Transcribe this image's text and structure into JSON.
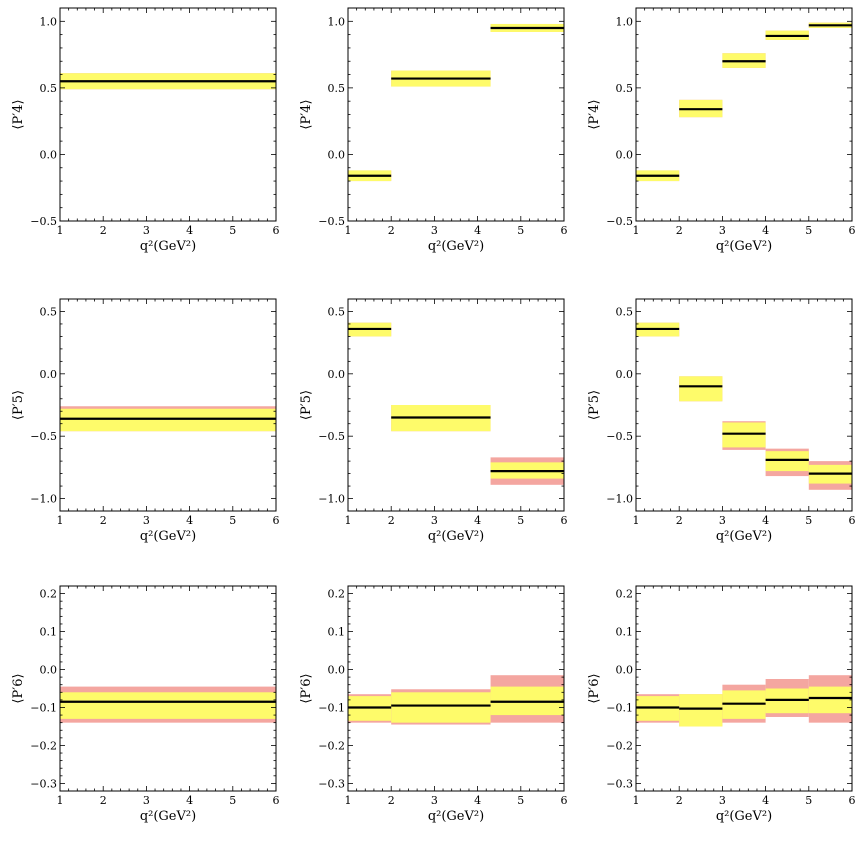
{
  "colors": {
    "outer_band": "#f4a6a0",
    "inner_band": "#fefb6a",
    "central_line": "#000000",
    "frame": "#000000"
  },
  "chart_data": [
    {
      "type": "bar",
      "panel": "P4-one-bin",
      "ylabel": "⟨P′4⟩",
      "xlabel": "q²(GeV²)",
      "xlim": [
        1,
        6
      ],
      "ylim": [
        -0.5,
        1.1
      ],
      "xticks": [
        1,
        2,
        3,
        4,
        5,
        6
      ],
      "yticks": [
        -0.5,
        0.0,
        0.5,
        1.0
      ],
      "ytick_labels": [
        "−0.5",
        "0.0",
        "0.5",
        "1.0"
      ],
      "bins": [
        {
          "x0": 1,
          "x1": 6,
          "value": 0.55,
          "inner": [
            0.49,
            0.61
          ],
          "outer": [
            0.49,
            0.61
          ]
        }
      ]
    },
    {
      "type": "bar",
      "panel": "P4-three-bins",
      "ylabel": "⟨P′4⟩",
      "xlabel": "q²(GeV²)",
      "xlim": [
        1,
        6
      ],
      "ylim": [
        -0.5,
        1.1
      ],
      "xticks": [
        1,
        2,
        3,
        4,
        5,
        6
      ],
      "yticks": [
        -0.5,
        0.0,
        0.5,
        1.0
      ],
      "ytick_labels": [
        "−0.5",
        "0.0",
        "0.5",
        "1.0"
      ],
      "bins": [
        {
          "x0": 1,
          "x1": 2,
          "value": -0.16,
          "inner": [
            -0.2,
            -0.12
          ],
          "outer": [
            -0.2,
            -0.12
          ]
        },
        {
          "x0": 2,
          "x1": 4.3,
          "value": 0.57,
          "inner": [
            0.51,
            0.63
          ],
          "outer": [
            0.51,
            0.63
          ]
        },
        {
          "x0": 4.3,
          "x1": 6,
          "value": 0.95,
          "inner": [
            0.92,
            0.98
          ],
          "outer": [
            0.92,
            0.98
          ]
        }
      ]
    },
    {
      "type": "bar",
      "panel": "P4-five-bins",
      "ylabel": "⟨P′4⟩",
      "xlabel": "q²(GeV²)",
      "xlim": [
        1,
        6
      ],
      "ylim": [
        -0.5,
        1.1
      ],
      "xticks": [
        1,
        2,
        3,
        4,
        5,
        6
      ],
      "yticks": [
        -0.5,
        0.0,
        0.5,
        1.0
      ],
      "ytick_labels": [
        "−0.5",
        "0.0",
        "0.5",
        "1.0"
      ],
      "bins": [
        {
          "x0": 1,
          "x1": 2,
          "value": -0.16,
          "inner": [
            -0.2,
            -0.12
          ],
          "outer": [
            -0.2,
            -0.12
          ]
        },
        {
          "x0": 2,
          "x1": 3,
          "value": 0.34,
          "inner": [
            0.28,
            0.41
          ],
          "outer": [
            0.28,
            0.41
          ]
        },
        {
          "x0": 3,
          "x1": 4,
          "value": 0.7,
          "inner": [
            0.65,
            0.76
          ],
          "outer": [
            0.65,
            0.76
          ]
        },
        {
          "x0": 4,
          "x1": 5,
          "value": 0.89,
          "inner": [
            0.86,
            0.93
          ],
          "outer": [
            0.86,
            0.93
          ]
        },
        {
          "x0": 5,
          "x1": 6,
          "value": 0.97,
          "inner": [
            0.95,
            0.99
          ],
          "outer": [
            0.95,
            0.99
          ]
        }
      ]
    },
    {
      "type": "bar",
      "panel": "P5-one-bin",
      "ylabel": "⟨P′5⟩",
      "xlabel": "q²(GeV²)",
      "xlim": [
        1,
        6
      ],
      "ylim": [
        -1.1,
        0.6
      ],
      "xticks": [
        1,
        2,
        3,
        4,
        5,
        6
      ],
      "yticks": [
        -1.0,
        -0.5,
        0.0,
        0.5
      ],
      "ytick_labels": [
        "−1.0",
        "−0.5",
        "0.0",
        "0.5"
      ],
      "bins": [
        {
          "x0": 1,
          "x1": 6,
          "value": -0.36,
          "inner": [
            -0.46,
            -0.28
          ],
          "outer": [
            -0.46,
            -0.26
          ]
        }
      ]
    },
    {
      "type": "bar",
      "panel": "P5-three-bins",
      "ylabel": "⟨P′5⟩",
      "xlabel": "q²(GeV²)",
      "xlim": [
        1,
        6
      ],
      "ylim": [
        -1.1,
        0.6
      ],
      "xticks": [
        1,
        2,
        3,
        4,
        5,
        6
      ],
      "yticks": [
        -1.0,
        -0.5,
        0.0,
        0.5
      ],
      "ytick_labels": [
        "−1.0",
        "−0.5",
        "0.0",
        "0.5"
      ],
      "bins": [
        {
          "x0": 1,
          "x1": 2,
          "value": 0.36,
          "inner": [
            0.3,
            0.41
          ],
          "outer": [
            0.3,
            0.41
          ]
        },
        {
          "x0": 2,
          "x1": 4.3,
          "value": -0.35,
          "inner": [
            -0.46,
            -0.25
          ],
          "outer": [
            -0.46,
            -0.25
          ]
        },
        {
          "x0": 4.3,
          "x1": 6,
          "value": -0.78,
          "inner": [
            -0.84,
            -0.71
          ],
          "outer": [
            -0.89,
            -0.67
          ]
        }
      ]
    },
    {
      "type": "bar",
      "panel": "P5-five-bins",
      "ylabel": "⟨P′5⟩",
      "xlabel": "q²(GeV²)",
      "xlim": [
        1,
        6
      ],
      "ylim": [
        -1.1,
        0.6
      ],
      "xticks": [
        1,
        2,
        3,
        4,
        5,
        6
      ],
      "yticks": [
        -1.0,
        -0.5,
        0.0,
        0.5
      ],
      "ytick_labels": [
        "−1.0",
        "−0.5",
        "0.0",
        "0.5"
      ],
      "bins": [
        {
          "x0": 1,
          "x1": 2,
          "value": 0.36,
          "inner": [
            0.3,
            0.41
          ],
          "outer": [
            0.3,
            0.41
          ]
        },
        {
          "x0": 2,
          "x1": 3,
          "value": -0.1,
          "inner": [
            -0.22,
            -0.02
          ],
          "outer": [
            -0.22,
            -0.02
          ]
        },
        {
          "x0": 3,
          "x1": 4,
          "value": -0.48,
          "inner": [
            -0.59,
            -0.39
          ],
          "outer": [
            -0.61,
            -0.38
          ]
        },
        {
          "x0": 4,
          "x1": 5,
          "value": -0.69,
          "inner": [
            -0.78,
            -0.62
          ],
          "outer": [
            -0.82,
            -0.6
          ]
        },
        {
          "x0": 5,
          "x1": 6,
          "value": -0.8,
          "inner": [
            -0.88,
            -0.73
          ],
          "outer": [
            -0.93,
            -0.7
          ]
        }
      ]
    },
    {
      "type": "bar",
      "panel": "P6-one-bin",
      "ylabel": "⟨P′6⟩",
      "xlabel": "q²(GeV²)",
      "xlim": [
        1,
        6
      ],
      "ylim": [
        -0.32,
        0.22
      ],
      "xticks": [
        1,
        2,
        3,
        4,
        5,
        6
      ],
      "yticks": [
        -0.3,
        -0.2,
        -0.1,
        0.0,
        0.1,
        0.2
      ],
      "ytick_labels": [
        "−0.3",
        "−0.2",
        "−0.1",
        "0.0",
        "0.1",
        "0.2"
      ],
      "bins": [
        {
          "x0": 1,
          "x1": 6,
          "value": -0.085,
          "inner": [
            -0.13,
            -0.06
          ],
          "outer": [
            -0.14,
            -0.045
          ]
        }
      ]
    },
    {
      "type": "bar",
      "panel": "P6-three-bins",
      "ylabel": "⟨P′6⟩",
      "xlabel": "q²(GeV²)",
      "xlim": [
        1,
        6
      ],
      "ylim": [
        -0.32,
        0.22
      ],
      "xticks": [
        1,
        2,
        3,
        4,
        5,
        6
      ],
      "yticks": [
        -0.3,
        -0.2,
        -0.1,
        0.0,
        0.1,
        0.2
      ],
      "ytick_labels": [
        "−0.3",
        "−0.2",
        "−0.1",
        "0.0",
        "0.1",
        "0.2"
      ],
      "bins": [
        {
          "x0": 1,
          "x1": 2,
          "value": -0.1,
          "inner": [
            -0.135,
            -0.07
          ],
          "outer": [
            -0.14,
            -0.065
          ]
        },
        {
          "x0": 2,
          "x1": 4.3,
          "value": -0.095,
          "inner": [
            -0.14,
            -0.06
          ],
          "outer": [
            -0.145,
            -0.052
          ]
        },
        {
          "x0": 4.3,
          "x1": 6,
          "value": -0.085,
          "inner": [
            -0.12,
            -0.045
          ],
          "outer": [
            -0.14,
            -0.015
          ]
        }
      ]
    },
    {
      "type": "bar",
      "panel": "P6-five-bins",
      "ylabel": "⟨P′6⟩",
      "xlabel": "q²(GeV²)",
      "xlim": [
        1,
        6
      ],
      "ylim": [
        -0.32,
        0.22
      ],
      "xticks": [
        1,
        2,
        3,
        4,
        5,
        6
      ],
      "yticks": [
        -0.3,
        -0.2,
        -0.1,
        0.0,
        0.1,
        0.2
      ],
      "ytick_labels": [
        "−0.3",
        "−0.2",
        "−0.1",
        "0.0",
        "0.1",
        "0.2"
      ],
      "bins": [
        {
          "x0": 1,
          "x1": 2,
          "value": -0.1,
          "inner": [
            -0.135,
            -0.07
          ],
          "outer": [
            -0.14,
            -0.065
          ]
        },
        {
          "x0": 2,
          "x1": 3,
          "value": -0.103,
          "inner": [
            -0.15,
            -0.065
          ],
          "outer": [
            -0.15,
            -0.065
          ]
        },
        {
          "x0": 3,
          "x1": 4,
          "value": -0.09,
          "inner": [
            -0.13,
            -0.055
          ],
          "outer": [
            -0.14,
            -0.04
          ]
        },
        {
          "x0": 4,
          "x1": 5,
          "value": -0.08,
          "inner": [
            -0.115,
            -0.05
          ],
          "outer": [
            -0.125,
            -0.025
          ]
        },
        {
          "x0": 5,
          "x1": 6,
          "value": -0.075,
          "inner": [
            -0.115,
            -0.045
          ],
          "outer": [
            -0.14,
            -0.015
          ]
        }
      ]
    }
  ]
}
